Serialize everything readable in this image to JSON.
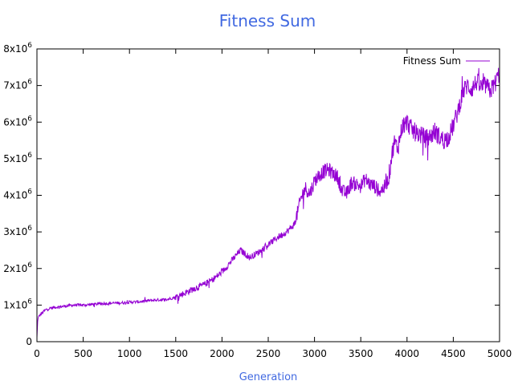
{
  "chart_data": {
    "type": "line",
    "title": "Fitness Sum",
    "xlabel": "Generation",
    "ylabel": "",
    "xlim": [
      0,
      5000
    ],
    "ylim": [
      0,
      8000000
    ],
    "x_ticks": [
      {
        "value": 0,
        "label": "0"
      },
      {
        "value": 500,
        "label": "500"
      },
      {
        "value": 1000,
        "label": "1000"
      },
      {
        "value": 1500,
        "label": "1500"
      },
      {
        "value": 2000,
        "label": "2000"
      },
      {
        "value": 2500,
        "label": "2500"
      },
      {
        "value": 3000,
        "label": "3000"
      },
      {
        "value": 3500,
        "label": "3500"
      },
      {
        "value": 4000,
        "label": "4000"
      },
      {
        "value": 4500,
        "label": "4500"
      },
      {
        "value": 5000,
        "label": "5000"
      }
    ],
    "y_ticks": [
      {
        "value": 0,
        "base": "0",
        "exp": ""
      },
      {
        "value": 1000000,
        "base": "1x10",
        "exp": "6"
      },
      {
        "value": 2000000,
        "base": "2x10",
        "exp": "6"
      },
      {
        "value": 3000000,
        "base": "3x10",
        "exp": "6"
      },
      {
        "value": 4000000,
        "base": "4x10",
        "exp": "6"
      },
      {
        "value": 5000000,
        "base": "5x10",
        "exp": "6"
      },
      {
        "value": 6000000,
        "base": "6x10",
        "exp": "6"
      },
      {
        "value": 7000000,
        "base": "7x10",
        "exp": "6"
      },
      {
        "value": 8000000,
        "base": "8x10",
        "exp": "6"
      }
    ],
    "grid": false,
    "legend_position": "top-right",
    "series": [
      {
        "name": "Fitness Sum",
        "color": "#9400d3",
        "x": [
          0,
          10,
          30,
          60,
          100,
          150,
          200,
          300,
          400,
          500,
          600,
          700,
          800,
          900,
          1000,
          1100,
          1200,
          1300,
          1400,
          1500,
          1600,
          1700,
          1800,
          1900,
          2000,
          2100,
          2150,
          2200,
          2250,
          2300,
          2400,
          2500,
          2600,
          2700,
          2780,
          2820,
          2850,
          2900,
          2950,
          3000,
          3050,
          3100,
          3150,
          3200,
          3250,
          3300,
          3350,
          3400,
          3450,
          3500,
          3550,
          3600,
          3650,
          3700,
          3750,
          3800,
          3830,
          3860,
          3900,
          3950,
          4000,
          4050,
          4100,
          4150,
          4200,
          4250,
          4300,
          4350,
          4400,
          4450,
          4500,
          4550,
          4600,
          4650,
          4700,
          4750,
          4800,
          4850,
          4900,
          4950,
          5000
        ],
        "y": [
          100000,
          650000,
          720000,
          800000,
          880000,
          920000,
          940000,
          970000,
          1000000,
          1000000,
          1020000,
          1040000,
          1050000,
          1060000,
          1080000,
          1090000,
          1120000,
          1140000,
          1150000,
          1220000,
          1330000,
          1450000,
          1550000,
          1700000,
          1900000,
          2200000,
          2350000,
          2500000,
          2400000,
          2300000,
          2450000,
          2650000,
          2850000,
          3000000,
          3200000,
          3550000,
          3900000,
          4200000,
          4050000,
          4400000,
          4550000,
          4650000,
          4700000,
          4600000,
          4500000,
          4100000,
          4050000,
          4350000,
          4300000,
          4250000,
          4450000,
          4300000,
          4250000,
          4100000,
          4200000,
          4450000,
          5000000,
          5450000,
          5300000,
          5900000,
          6000000,
          5800000,
          5700000,
          5650000,
          5550000,
          5600000,
          5750000,
          5600000,
          5500000,
          5600000,
          5900000,
          6300000,
          6800000,
          7000000,
          6900000,
          7100000,
          6950000,
          7000000,
          6850000,
          7050000,
          7350000
        ]
      }
    ]
  }
}
